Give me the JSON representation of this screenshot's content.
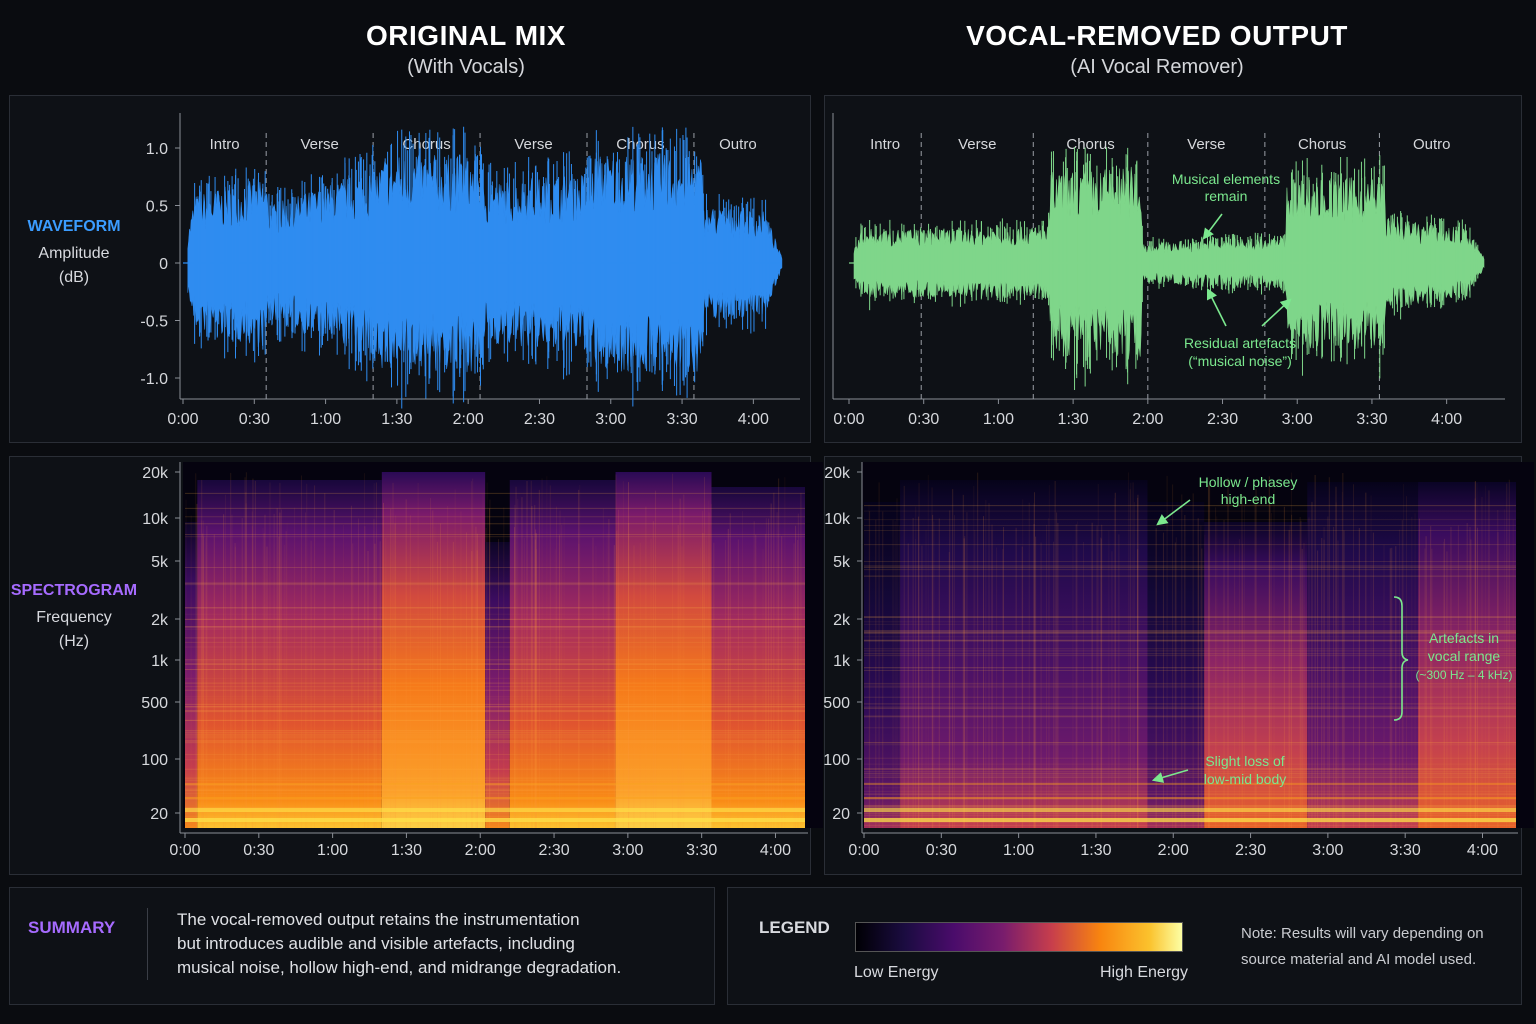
{
  "left_header": {
    "title": "ORIGINAL MIX",
    "subtitle": "(With Vocals)"
  },
  "right_header": {
    "title": "VOCAL-REMOVED OUTPUT",
    "subtitle": "(AI Vocal Remover)"
  },
  "waveform_label": {
    "key": "WAVEFORM",
    "unit_line1": "Amplitude",
    "unit_line2": "(dB)"
  },
  "spectrogram_label": {
    "key": "SPECTROGRAM",
    "unit_line1": "Frequency",
    "unit_line2": "(Hz)"
  },
  "colors": {
    "waveform_original": "#2f8cf0",
    "waveform_removed": "#7fd68a",
    "annotation": "#7be88e",
    "waveform_key": "#3b9cff",
    "spectrogram_key": "#a66bff",
    "summary_key": "#a66bff"
  },
  "annotations": {
    "musical_elements": [
      "Musical elements",
      "remain"
    ],
    "residual": [
      "Residual artefacts",
      "(“musical noise”)"
    ],
    "hollow": [
      "Hollow / phasey",
      "high-end"
    ],
    "artefacts_vocal": [
      "Artefacts in",
      "vocal range",
      "(~300 Hz – 4 kHz)"
    ],
    "low_mid": [
      "Slight loss of",
      "low-mid body"
    ]
  },
  "summary": {
    "key": "SUMMARY",
    "lines": [
      "The vocal-removed output retains the instrumentation",
      "but introduces audible and visible artefacts, including",
      "musical noise, hollow high-end, and midrange degradation."
    ]
  },
  "legend": {
    "key": "LEGEND",
    "low": "Low Energy",
    "high": "High Energy",
    "note_lines": [
      "Note: Results will vary depending on",
      "source material and AI model used."
    ]
  },
  "chart_data": [
    {
      "type": "area",
      "title": "Waveform — Original Mix",
      "ylabel": "Amplitude (dB)",
      "xlim_seconds": [
        0,
        255
      ],
      "ylim": [
        -1.2,
        1.2
      ],
      "x_ticks": [
        "0:00",
        "0:30",
        "1:00",
        "1:30",
        "2:00",
        "2:30",
        "3:00",
        "3:30",
        "4:00"
      ],
      "y_ticks": [
        "1.0",
        "0.5",
        "0",
        "-0.5",
        "-1.0"
      ],
      "sections": [
        "Intro",
        "Verse",
        "Chorus",
        "Verse",
        "Chorus",
        "Outro"
      ],
      "section_boundaries": [
        "0:35",
        "1:20",
        "2:05",
        "2:50",
        "3:35"
      ],
      "envelope_seconds": [
        0,
        5,
        35,
        36,
        83,
        84,
        125,
        126,
        172,
        173,
        218,
        219,
        245,
        252
      ],
      "envelope_amplitude": [
        0.05,
        0.6,
        0.75,
        0.5,
        0.85,
        0.95,
        0.95,
        0.7,
        0.8,
        0.95,
        0.95,
        0.5,
        0.45,
        0.05
      ]
    },
    {
      "type": "area",
      "title": "Waveform — Vocal-Removed Output",
      "ylabel": "Amplitude (dB)",
      "xlim_seconds": [
        0,
        255
      ],
      "ylim": [
        -1.2,
        1.2
      ],
      "x_ticks": [
        "0:00",
        "0:30",
        "1:00",
        "1:30",
        "2:00",
        "2:30",
        "3:00",
        "3:30",
        "4:00"
      ],
      "sections": [
        "Intro",
        "Verse",
        "Chorus",
        "Verse",
        "Chorus",
        "Outro"
      ],
      "section_boundaries": [
        "0:29",
        "1:14",
        "2:00",
        "2:47",
        "3:33"
      ],
      "envelope_seconds": [
        0,
        5,
        36,
        37,
        80,
        81,
        117,
        118,
        175,
        176,
        215,
        216,
        248,
        255
      ],
      "envelope_amplitude": [
        0.05,
        0.3,
        0.3,
        0.3,
        0.32,
        0.8,
        0.85,
        0.18,
        0.22,
        0.75,
        0.75,
        0.4,
        0.3,
        0.05
      ]
    },
    {
      "type": "heatmap",
      "title": "Spectrogram — Original Mix",
      "ylabel": "Frequency (Hz)",
      "x_ticks": [
        "0:00",
        "0:30",
        "1:00",
        "1:30",
        "2:00",
        "2:30",
        "3:00",
        "3:30",
        "4:00"
      ],
      "y_ticks": [
        "20k",
        "10k",
        "5k",
        "2k",
        "1k",
        "500",
        "100",
        "20"
      ]
    },
    {
      "type": "heatmap",
      "title": "Spectrogram — Vocal-Removed Output",
      "ylabel": "Frequency (Hz)",
      "x_ticks": [
        "0:00",
        "0:30",
        "1:00",
        "1:30",
        "2:00",
        "2:30",
        "3:00",
        "3:30",
        "4:00"
      ],
      "y_ticks": [
        "20k",
        "10k",
        "5k",
        "2k",
        "1k",
        "500",
        "100",
        "20"
      ]
    }
  ]
}
